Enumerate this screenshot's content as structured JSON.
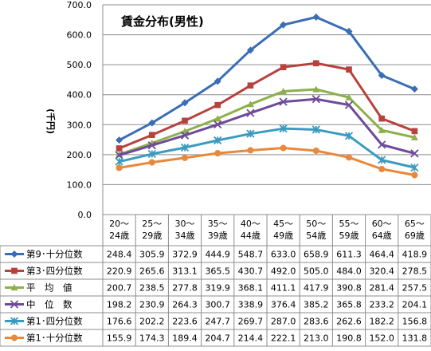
{
  "chart_data": {
    "type": "line",
    "title": "賃金分布(男性)",
    "ylabel": "(千円)",
    "xlabel": "",
    "ylim": [
      0,
      700
    ],
    "ytick_step": 100,
    "ytick_labels": [
      "0.0",
      "100.0",
      "200.0",
      "300.0",
      "400.0",
      "500.0",
      "600.0",
      "700.0"
    ],
    "grid": "horizontal",
    "legend": "data-table",
    "categories": [
      [
        "20〜",
        "24歳"
      ],
      [
        "25〜",
        "29歳"
      ],
      [
        "30〜",
        "34歳"
      ],
      [
        "35〜",
        "39歳"
      ],
      [
        "40〜",
        "44歳"
      ],
      [
        "45〜",
        "49歳"
      ],
      [
        "50〜",
        "54歳"
      ],
      [
        "55〜",
        "59歳"
      ],
      [
        "60〜",
        "64歳"
      ],
      [
        "65〜",
        "69歳"
      ]
    ],
    "series": [
      {
        "name": "第9･十分位数",
        "color": "#3A6DB5",
        "marker": "diamond",
        "values": [
          248.4,
          305.9,
          372.9,
          444.9,
          548.7,
          633.0,
          658.9,
          611.3,
          464.4,
          418.9
        ],
        "labels": [
          "248.4",
          "305.9",
          "372.9",
          "444.9",
          "548.7",
          "633.0",
          "658.9",
          "611.3",
          "464.4",
          "418.9"
        ]
      },
      {
        "name": "第3･四分位数",
        "color": "#B8413D",
        "marker": "square",
        "values": [
          220.9,
          265.6,
          313.1,
          365.5,
          430.7,
          492.0,
          505.0,
          484.0,
          320.4,
          278.5
        ],
        "labels": [
          "220.9",
          "265.6",
          "313.1",
          "365.5",
          "430.7",
          "492.0",
          "505.0",
          "484.0",
          "320.4",
          "278.5"
        ]
      },
      {
        "name": "平　均　値",
        "color": "#8DB04A",
        "marker": "triangle",
        "values": [
          200.7,
          238.5,
          277.8,
          319.9,
          368.1,
          411.1,
          417.9,
          390.8,
          281.4,
          257.5
        ],
        "labels": [
          "200.7",
          "238.5",
          "277.8",
          "319.9",
          "368.1",
          "411.1",
          "417.9",
          "390.8",
          "281.4",
          "257.5"
        ]
      },
      {
        "name": "中　位　数",
        "color": "#6E4A9A",
        "marker": "x",
        "values": [
          198.2,
          230.9,
          264.3,
          300.7,
          338.9,
          376.4,
          385.2,
          365.8,
          233.2,
          204.1
        ],
        "labels": [
          "198.2",
          "230.9",
          "264.3",
          "300.7",
          "338.9",
          "376.4",
          "385.2",
          "365.8",
          "233.2",
          "204.1"
        ]
      },
      {
        "name": "第1･四分位数",
        "color": "#3A9BBF",
        "marker": "star",
        "values": [
          176.6,
          202.2,
          223.6,
          247.7,
          269.7,
          287.0,
          283.6,
          262.6,
          182.2,
          156.8
        ],
        "labels": [
          "176.6",
          "202.2",
          "223.6",
          "247.7",
          "269.7",
          "287.0",
          "283.6",
          "262.6",
          "182.2",
          "156.8"
        ]
      },
      {
        "name": "第1･十分位数",
        "color": "#E8883A",
        "marker": "circle",
        "values": [
          155.9,
          174.3,
          189.4,
          204.7,
          214.4,
          222.1,
          213.0,
          190.8,
          152.0,
          131.8
        ],
        "labels": [
          "155.9",
          "174.3",
          "189.4",
          "204.7",
          "214.4",
          "222.1",
          "213.0",
          "190.8",
          "152.0",
          "131.8"
        ]
      }
    ]
  }
}
